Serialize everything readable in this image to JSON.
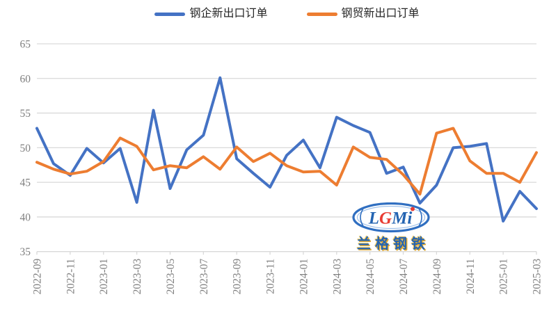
{
  "chart_data": {
    "type": "line",
    "title": "",
    "x": [
      "2022-09",
      "2022-10",
      "2022-11",
      "2022-12",
      "2023-01",
      "2023-02",
      "2023-03",
      "2023-04",
      "2023-05",
      "2023-06",
      "2023-07",
      "2023-08",
      "2023-09",
      "2023-10",
      "2023-11",
      "2023-12",
      "2024-01",
      "2024-02",
      "2024-03",
      "2024-04",
      "2024-05",
      "2024-06",
      "2024-07",
      "2024-08",
      "2024-09",
      "2024-10",
      "2024-11",
      "2024-12",
      "2025-01",
      "2025-02",
      "2025-03"
    ],
    "xtick_labels": [
      "2022-09",
      "2022-11",
      "2023-01",
      "2023-03",
      "2023-05",
      "2023-07",
      "2023-09",
      "2023-11",
      "2024-01",
      "2024-03",
      "2024-05",
      "2024-07",
      "2024-09",
      "2024-11",
      "2025-01",
      "2025-03"
    ],
    "series": [
      {
        "name": "钢企新出口订单",
        "color": "#4472C4",
        "values": [
          52.8,
          47.7,
          46.0,
          49.9,
          47.8,
          49.9,
          42.1,
          55.4,
          44.1,
          49.7,
          51.8,
          60.1,
          48.4,
          46.3,
          44.3,
          48.9,
          51.1,
          47.1,
          54.4,
          53.2,
          52.2,
          46.3,
          47.2,
          42.0,
          44.6,
          50.0,
          50.2,
          50.6,
          39.4,
          43.7,
          41.2
        ]
      },
      {
        "name": "钢贸新出口订单",
        "color": "#ED7D31",
        "values": [
          47.9,
          46.9,
          46.2,
          46.6,
          48.0,
          51.4,
          50.2,
          46.8,
          47.4,
          47.1,
          48.7,
          46.9,
          50.1,
          48.0,
          49.2,
          47.4,
          46.5,
          46.6,
          44.6,
          50.1,
          48.6,
          48.3,
          46.1,
          43.3,
          52.1,
          52.8,
          48.1,
          46.3,
          46.3,
          45.0,
          49.3
        ]
      }
    ],
    "ylim": [
      35,
      65
    ],
    "yticks": [
      35,
      40,
      45,
      50,
      55,
      60,
      65
    ],
    "grid": "horizontal",
    "legend_position": "top-center",
    "xtick_rotation_deg": -90
  },
  "watermark": {
    "company_name": "兰格钢铁",
    "logo_letters": [
      {
        "char": "L",
        "color": "#1d5fb0"
      },
      {
        "char": "G",
        "color": "#e8362d"
      },
      {
        "char": "M",
        "color": "#1d5fb0"
      },
      {
        "char": "i",
        "color": "#1d5fb0"
      }
    ]
  },
  "colors": {
    "background": "#FFFFFF",
    "grid": "#D9D9D9",
    "axis_label": "#7F7F7F",
    "legend_text": "#262626",
    "watermark_blue": "#1d5fb0",
    "watermark_red": "#e8362d",
    "watermark_gold": "#e0a526"
  }
}
